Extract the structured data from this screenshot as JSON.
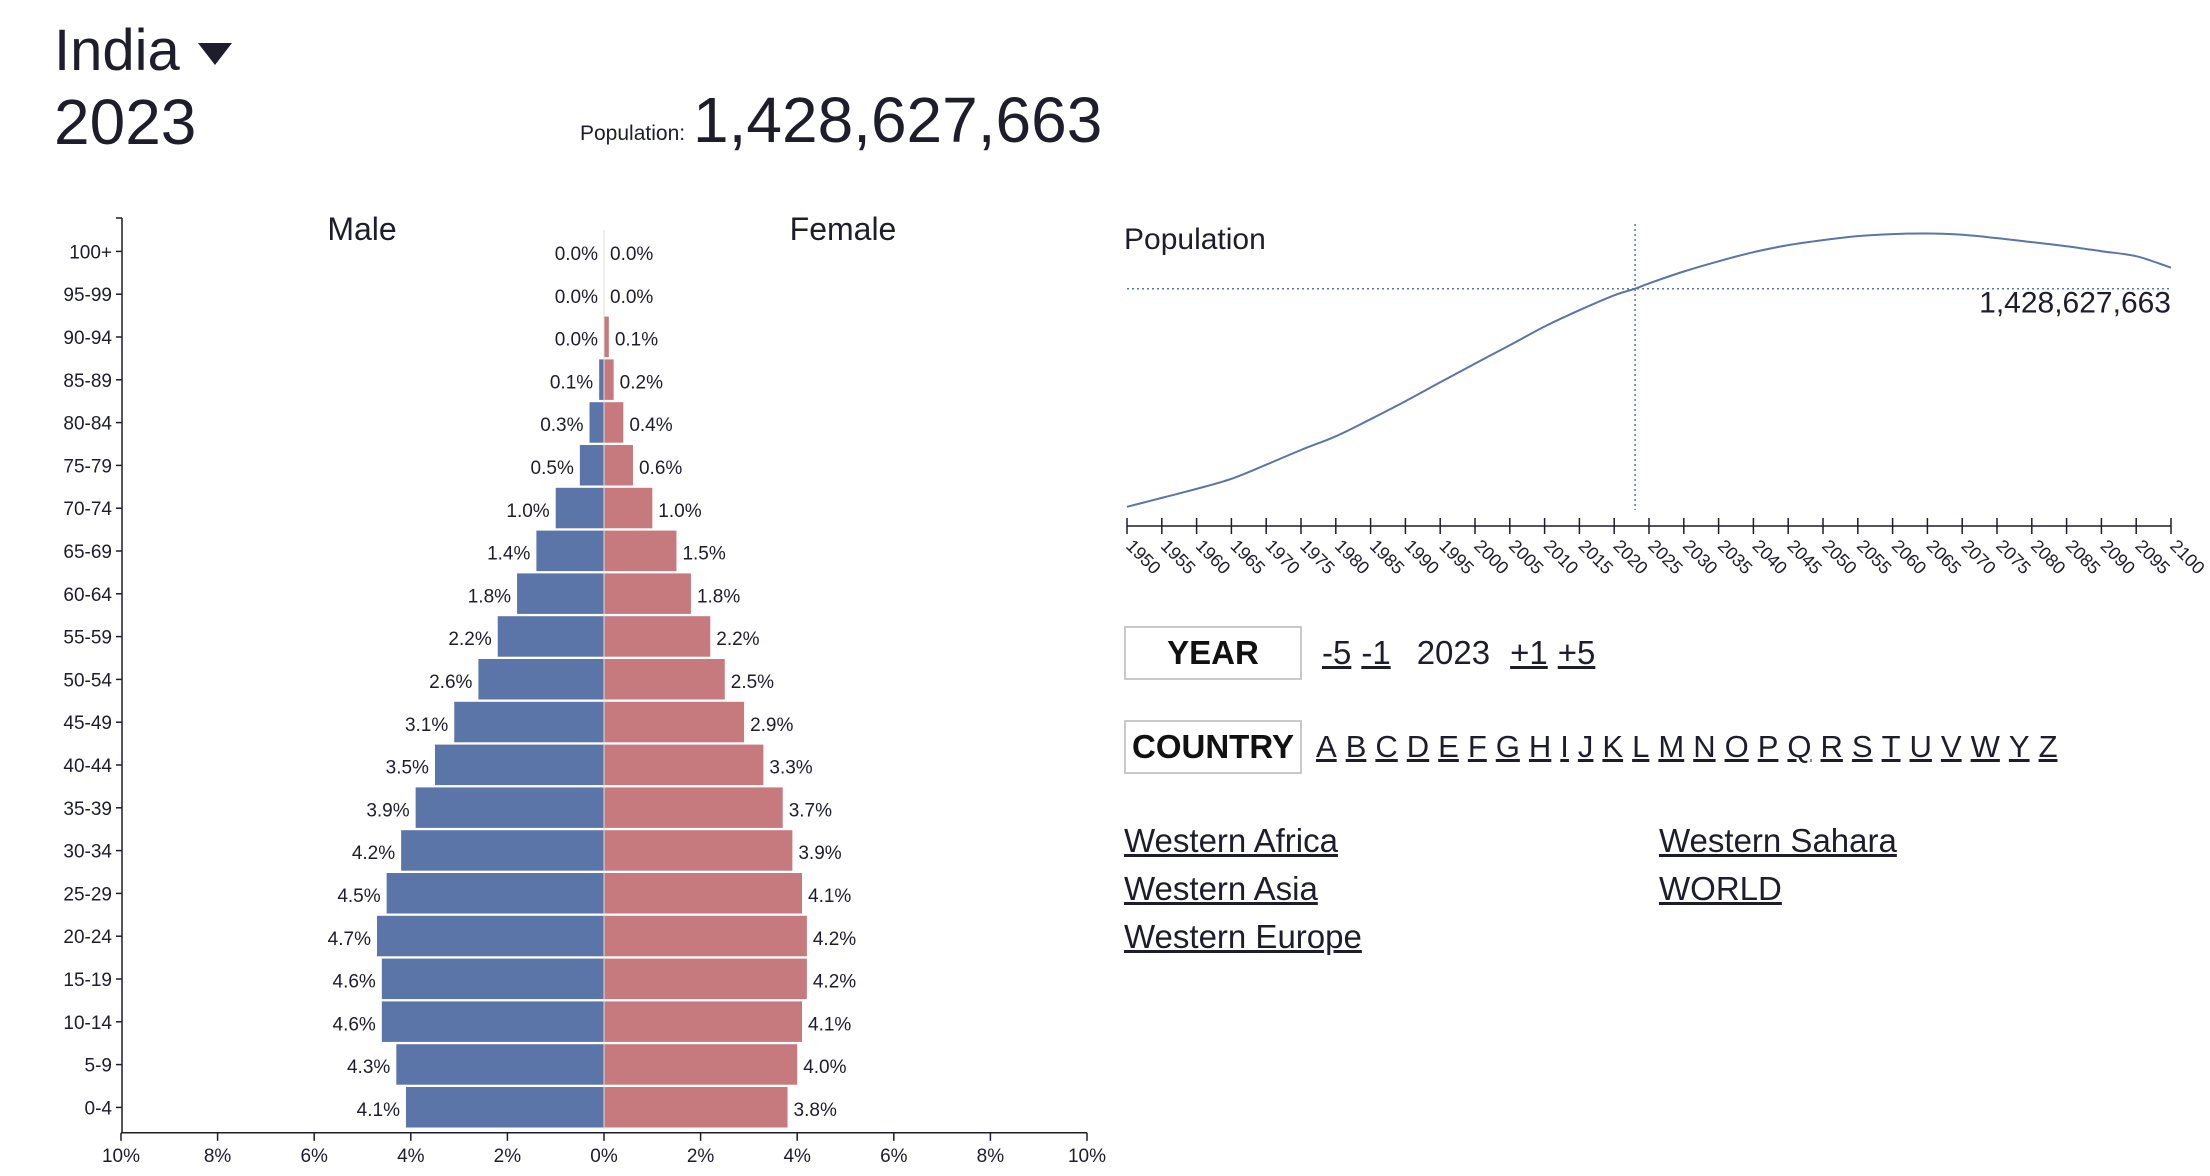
{
  "header": {
    "country": "India",
    "year": "2023",
    "population_label": "Population:",
    "population_value": "1,428,627,663"
  },
  "colors": {
    "male": "#5b75a8",
    "female": "#c77a7e",
    "line": "#5b75a8",
    "text": "#1d1d2b"
  },
  "chart_data": [
    {
      "type": "bar",
      "subtype": "population-pyramid",
      "series_labels": {
        "male": "Male",
        "female": "Female"
      },
      "categories": [
        "100+",
        "95-99",
        "90-94",
        "85-89",
        "80-84",
        "75-79",
        "70-74",
        "65-69",
        "60-64",
        "55-59",
        "50-54",
        "45-49",
        "40-44",
        "35-39",
        "30-34",
        "25-29",
        "20-24",
        "15-19",
        "10-14",
        "5-9",
        "0-4"
      ],
      "series": [
        {
          "name": "Male",
          "values": [
            0.0,
            0.0,
            0.0,
            0.1,
            0.3,
            0.5,
            1.0,
            1.4,
            1.8,
            2.2,
            2.6,
            3.1,
            3.5,
            3.9,
            4.2,
            4.5,
            4.7,
            4.6,
            4.6,
            4.3,
            4.1
          ]
        },
        {
          "name": "Female",
          "values": [
            0.0,
            0.0,
            0.1,
            0.2,
            0.4,
            0.6,
            1.0,
            1.5,
            1.8,
            2.2,
            2.5,
            2.9,
            3.3,
            3.7,
            3.9,
            4.1,
            4.2,
            4.2,
            4.1,
            4.0,
            3.8
          ]
        }
      ],
      "value_labels": {
        "male": [
          "0.0%",
          "0.0%",
          "0.0%",
          "0.1%",
          "0.3%",
          "0.5%",
          "1.0%",
          "1.4%",
          "1.8%",
          "2.2%",
          "2.6%",
          "3.1%",
          "3.5%",
          "3.9%",
          "4.2%",
          "4.5%",
          "4.7%",
          "4.6%",
          "4.6%",
          "4.3%",
          "4.1%"
        ],
        "female": [
          "0.0%",
          "0.0%",
          "0.1%",
          "0.2%",
          "0.4%",
          "0.6%",
          "1.0%",
          "1.5%",
          "1.8%",
          "2.2%",
          "2.5%",
          "2.9%",
          "3.3%",
          "3.7%",
          "3.9%",
          "4.1%",
          "4.2%",
          "4.2%",
          "4.1%",
          "4.0%",
          "3.8%"
        ]
      },
      "xlim": [
        -10,
        10
      ],
      "xticks": [
        -10,
        -8,
        -6,
        -4,
        -2,
        0,
        2,
        4,
        6,
        8,
        10
      ],
      "xtick_labels": [
        "10%",
        "8%",
        "6%",
        "4%",
        "2%",
        "0%",
        "2%",
        "4%",
        "6%",
        "8%",
        "10%"
      ],
      "unit": "%",
      "grid": false
    },
    {
      "type": "line",
      "title": "Population",
      "x_ticks": [
        1950,
        1955,
        1960,
        1965,
        1970,
        1975,
        1980,
        1985,
        1990,
        1995,
        2000,
        2005,
        2010,
        2015,
        2020,
        2025,
        2030,
        2035,
        2040,
        2045,
        2050,
        2055,
        2060,
        2065,
        2070,
        2075,
        2080,
        2085,
        2090,
        2095,
        2100
      ],
      "xlim": [
        1950,
        2100
      ],
      "ylim": [
        330000000,
        1750000000
      ],
      "series": [
        {
          "x": [
            1950,
            1955,
            1960,
            1965,
            1970,
            1975,
            1980,
            1985,
            1990,
            1995,
            2000,
            2005,
            2010,
            2015,
            2020,
            2023,
            2025,
            2030,
            2035,
            2040,
            2045,
            2050,
            2055,
            2060,
            2065,
            2070,
            2075,
            2080,
            2085,
            2090,
            2095,
            2100
          ],
          "y": [
            346000000,
            390000000,
            435000000,
            485000000,
            555000000,
            628000000,
            696000000,
            781000000,
            870000000,
            964000000,
            1057000000,
            1148000000,
            1241000000,
            1322000000,
            1396000000,
            1428627663,
            1455000000,
            1514000000,
            1565000000,
            1610000000,
            1645000000,
            1670000000,
            1690000000,
            1700000000,
            1703000000,
            1697000000,
            1680000000,
            1660000000,
            1640000000,
            1615000000,
            1590000000,
            1533000000
          ]
        }
      ],
      "marker": {
        "x": 2023,
        "y": 1428627663,
        "label": "1,428,627,663"
      },
      "grid": false
    }
  ],
  "controls": {
    "year_label": "YEAR",
    "year_steps_back": [
      "-5",
      "-1"
    ],
    "year_value": "2023",
    "year_steps_forward": [
      "+1",
      "+5"
    ],
    "country_label": "COUNTRY",
    "letters": [
      "A",
      "B",
      "C",
      "D",
      "E",
      "F",
      "G",
      "H",
      "I",
      "J",
      "K",
      "L",
      "M",
      "N",
      "O",
      "P",
      "Q",
      "R",
      "S",
      "T",
      "U",
      "V",
      "W",
      "Y",
      "Z"
    ]
  },
  "regions": [
    "Western Africa",
    "Western Sahara",
    "Western Asia",
    "WORLD",
    "Western Europe"
  ]
}
